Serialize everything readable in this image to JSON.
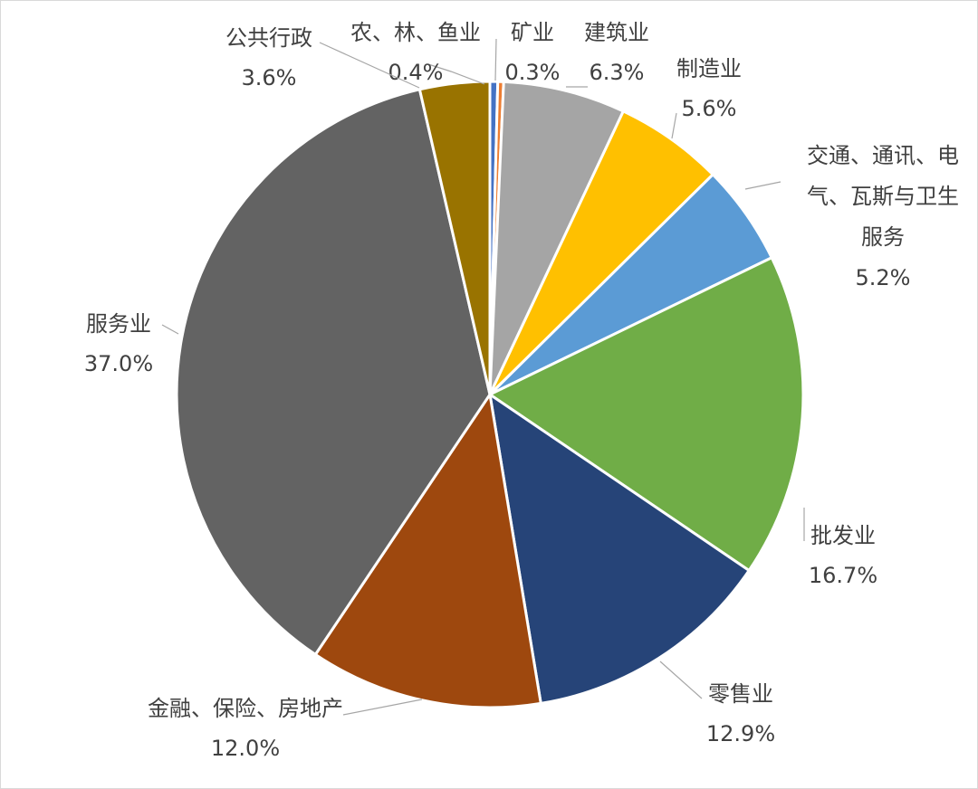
{
  "chart_data": {
    "type": "pie",
    "title": "",
    "start_angle_deg": 0,
    "direction": "clockwise",
    "slices": [
      {
        "category": "农、林、鱼业",
        "value": 0.4,
        "label": "0.4%",
        "color": "#4472c4"
      },
      {
        "category": "矿业",
        "value": 0.3,
        "label": "0.3%",
        "color": "#ed7d31"
      },
      {
        "category": "建筑业",
        "value": 6.3,
        "label": "6.3%",
        "color": "#a5a5a5"
      },
      {
        "category": "制造业",
        "value": 5.6,
        "label": "5.6%",
        "color": "#ffc000"
      },
      {
        "category": "交通、通讯、电气、瓦斯与卫生服务",
        "category_lines": [
          "交通、通讯、电",
          "气、瓦斯与卫生",
          "服务"
        ],
        "value": 5.2,
        "label": "5.2%",
        "color": "#5b9bd5"
      },
      {
        "category": "批发业",
        "value": 16.7,
        "label": "16.7%",
        "color": "#70ad47"
      },
      {
        "category": "零售业",
        "value": 12.9,
        "label": "12.9%",
        "color": "#264478"
      },
      {
        "category": "金融、保险、房地产",
        "value": 12.0,
        "label": "12.0%",
        "color": "#9e480e"
      },
      {
        "category": "服务业",
        "value": 37.0,
        "label": "37.0%",
        "color": "#636363"
      },
      {
        "category": "公共行政",
        "value": 3.6,
        "label": "3.6%",
        "color": "#997300"
      }
    ]
  }
}
